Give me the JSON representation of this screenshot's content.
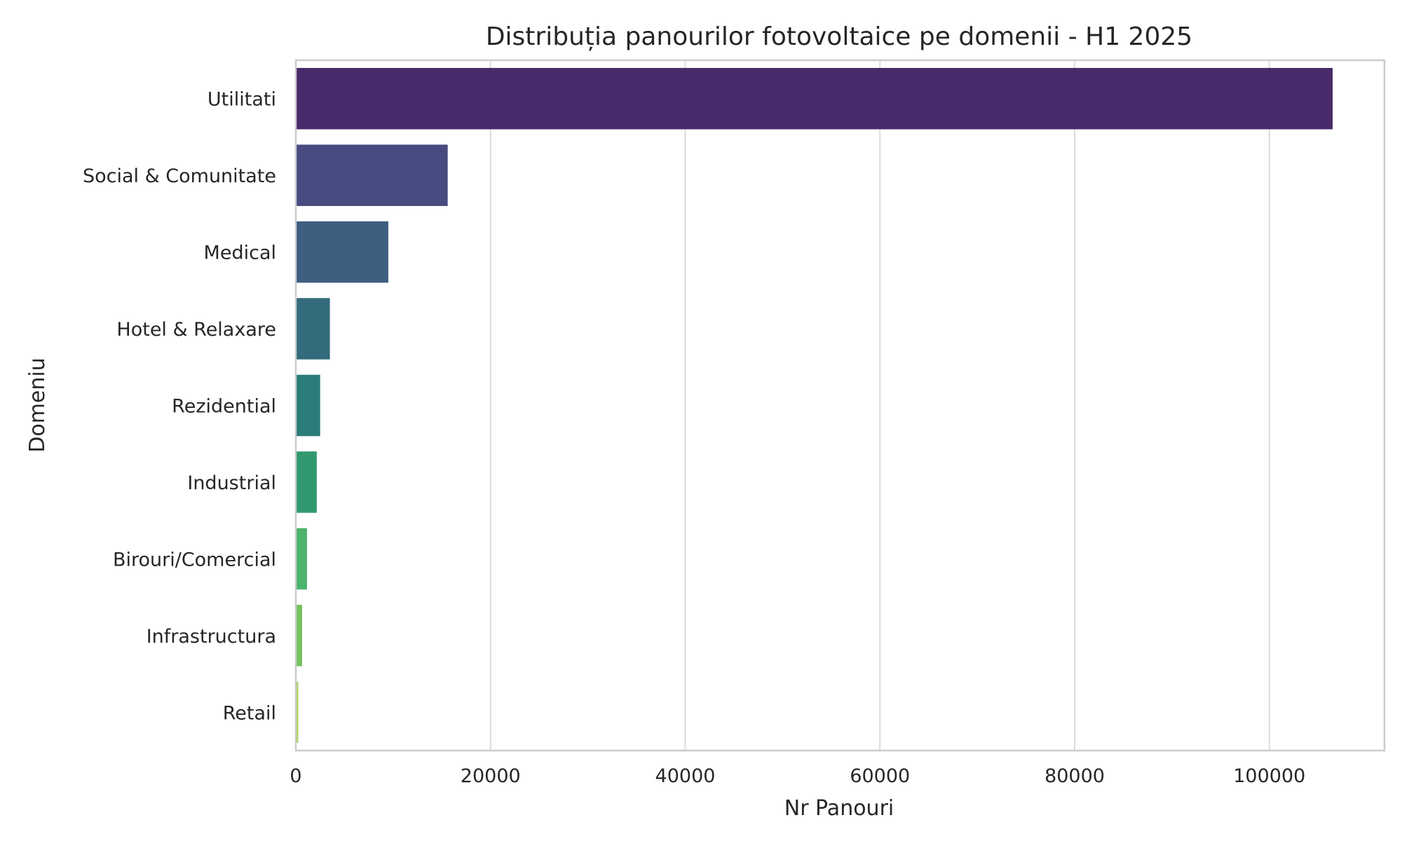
{
  "chart_data": {
    "type": "bar",
    "orientation": "horizontal",
    "title": "Distribuția panourilor fotovoltaice pe domenii - H1 2025",
    "xlabel": "Nr Panouri",
    "ylabel": "Domeniu",
    "categories": [
      "Utilitati",
      "Social & Comunitate",
      "Medical",
      "Hotel & Relaxare",
      "Rezidential",
      "Industrial",
      "Birouri/Comercial",
      "Infrastructura",
      "Retail"
    ],
    "values": [
      106500,
      15600,
      9500,
      3500,
      2500,
      2150,
      1150,
      650,
      250
    ],
    "colors": [
      "#482b6b",
      "#484b7f",
      "#3e5e80",
      "#336b7d",
      "#2b7d7a",
      "#31986f",
      "#4db26b",
      "#74c35f",
      "#b3d35f"
    ],
    "xticks": [
      0,
      20000,
      40000,
      60000,
      80000,
      100000
    ],
    "xtick_labels": [
      "0",
      "20000",
      "40000",
      "60000",
      "80000",
      "100000"
    ],
    "xlim": [
      0,
      111825
    ],
    "grid": "vertical",
    "legend": "none"
  }
}
